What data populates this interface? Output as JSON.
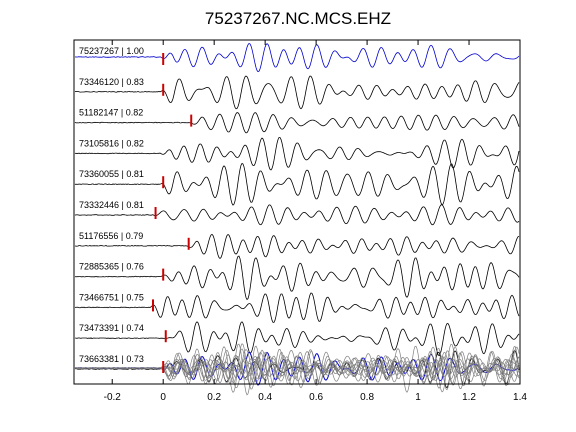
{
  "chart_data": {
    "type": "line",
    "title": "75237267.NC.MCS.EHZ",
    "xlabel": "",
    "ylabel": "",
    "xlim": [
      -0.35,
      1.4
    ],
    "x_ticks": [
      "-0.2",
      "0",
      "0.2",
      "0.4",
      "0.6",
      "0.8",
      "1",
      "1.2",
      "1.4"
    ],
    "x_tick_values": [
      -0.2,
      0,
      0.2,
      0.4,
      0.6,
      0.8,
      1.0,
      1.2,
      1.4
    ],
    "grid": false,
    "colors": {
      "reference": "#0000cc",
      "trace": "#000000",
      "stack": "#808080",
      "pick": "#cc0000",
      "axis": "#000000"
    },
    "series": [
      {
        "name": "75237267 | 1.00",
        "pick": 0.0,
        "reference": true
      },
      {
        "name": "73346120 | 0.83",
        "pick": 0.0
      },
      {
        "name": "51182147 | 0.82",
        "pick": 0.11
      },
      {
        "name": "73105816 | 0.82",
        "pick": null
      },
      {
        "name": "73360055 | 0.81",
        "pick": 0.0
      },
      {
        "name": "73332446 | 0.81",
        "pick": -0.03
      },
      {
        "name": "51176556 | 0.79",
        "pick": 0.1
      },
      {
        "name": "72885365 | 0.76",
        "pick": 0.0
      },
      {
        "name": "73466751 | 0.75",
        "pick": -0.04
      },
      {
        "name": "73473391 | 0.74",
        "pick": 0.01
      },
      {
        "name": "73663381 | 0.73",
        "pick": 0.0
      }
    ],
    "stack_row": {
      "description_shown": false
    }
  }
}
